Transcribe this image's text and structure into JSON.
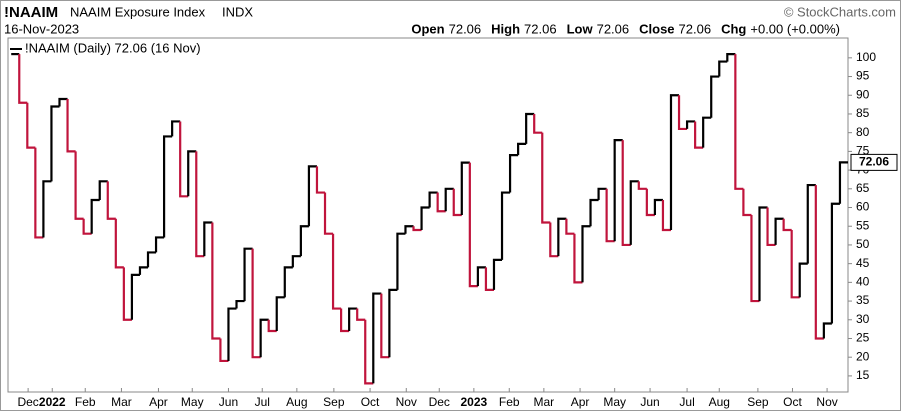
{
  "header": {
    "symbol": "!NAAIM",
    "name": "NAAIM Exposure Index",
    "exchange": "INDX",
    "credit": "© StockCharts.com",
    "date": "16-Nov-2023",
    "quote": [
      {
        "label": "Open",
        "value": "72.06"
      },
      {
        "label": "High",
        "value": "72.06"
      },
      {
        "label": "Low",
        "value": "72.06"
      },
      {
        "label": "Close",
        "value": "72.06"
      },
      {
        "label": "Chg",
        "value": "+0.00 (+0.00%)"
      }
    ]
  },
  "chart_data": {
    "type": "step",
    "series": [
      {
        "name": "!NAAIM (Daily) 72.06 (16 Nov)",
        "up_color": "#000000",
        "down_color": "#c0143c",
        "values": [
          101,
          88,
          76,
          52,
          67,
          87,
          89,
          75,
          57,
          53,
          62,
          67,
          57,
          44,
          30,
          42,
          44,
          48,
          52,
          79,
          83,
          63,
          75,
          47,
          56,
          25,
          19,
          33,
          35,
          49,
          20,
          30,
          27,
          36,
          44,
          47,
          55,
          71,
          64,
          53,
          33,
          27,
          33,
          30,
          13,
          37,
          20,
          38,
          53,
          55,
          54,
          60,
          64,
          59,
          65,
          58,
          72,
          39,
          44,
          38,
          46,
          64,
          74,
          77,
          85,
          80,
          56,
          47,
          57,
          53,
          40,
          55,
          62,
          65,
          51,
          78,
          50,
          67,
          65,
          58,
          62,
          54,
          90,
          81,
          83,
          76,
          84,
          95,
          99,
          101,
          65,
          58,
          35,
          60,
          50,
          57,
          54,
          36,
          45,
          66,
          25,
          29,
          61,
          72.06
        ],
        "last_value_label": "72.06"
      }
    ],
    "xlim": [
      -0.9,
      103.5
    ],
    "xticks": [
      {
        "value": 1.6,
        "label": "Dec"
      },
      {
        "value": 4.6,
        "label": "2022"
      },
      {
        "value": 8.7,
        "label": "Feb"
      },
      {
        "value": 13.2,
        "label": "Mar"
      },
      {
        "value": 17.8,
        "label": "Apr"
      },
      {
        "value": 22,
        "label": "May"
      },
      {
        "value": 26.5,
        "label": "Jun"
      },
      {
        "value": 30.7,
        "label": "Jul"
      },
      {
        "value": 35,
        "label": "Aug"
      },
      {
        "value": 39.6,
        "label": "Sep"
      },
      {
        "value": 44.1,
        "label": "Oct"
      },
      {
        "value": 48.6,
        "label": "Nov"
      },
      {
        "value": 52.7,
        "label": "Dec"
      },
      {
        "value": 57,
        "label": "2023"
      },
      {
        "value": 61.4,
        "label": "Feb"
      },
      {
        "value": 65.7,
        "label": "Mar"
      },
      {
        "value": 70.2,
        "label": "Apr"
      },
      {
        "value": 74.5,
        "label": "May"
      },
      {
        "value": 78.9,
        "label": "Jun"
      },
      {
        "value": 83.5,
        "label": "Jul"
      },
      {
        "value": 87.5,
        "label": "Aug"
      },
      {
        "value": 92.3,
        "label": "Sep"
      },
      {
        "value": 96.6,
        "label": "Oct"
      },
      {
        "value": 100.9,
        "label": "Nov"
      }
    ],
    "ylim": [
      10.7,
      105.3
    ],
    "yticks": [
      15,
      20,
      25,
      30,
      35,
      40,
      45,
      50,
      55,
      60,
      65,
      70,
      75,
      80,
      85,
      90,
      95,
      100
    ]
  }
}
